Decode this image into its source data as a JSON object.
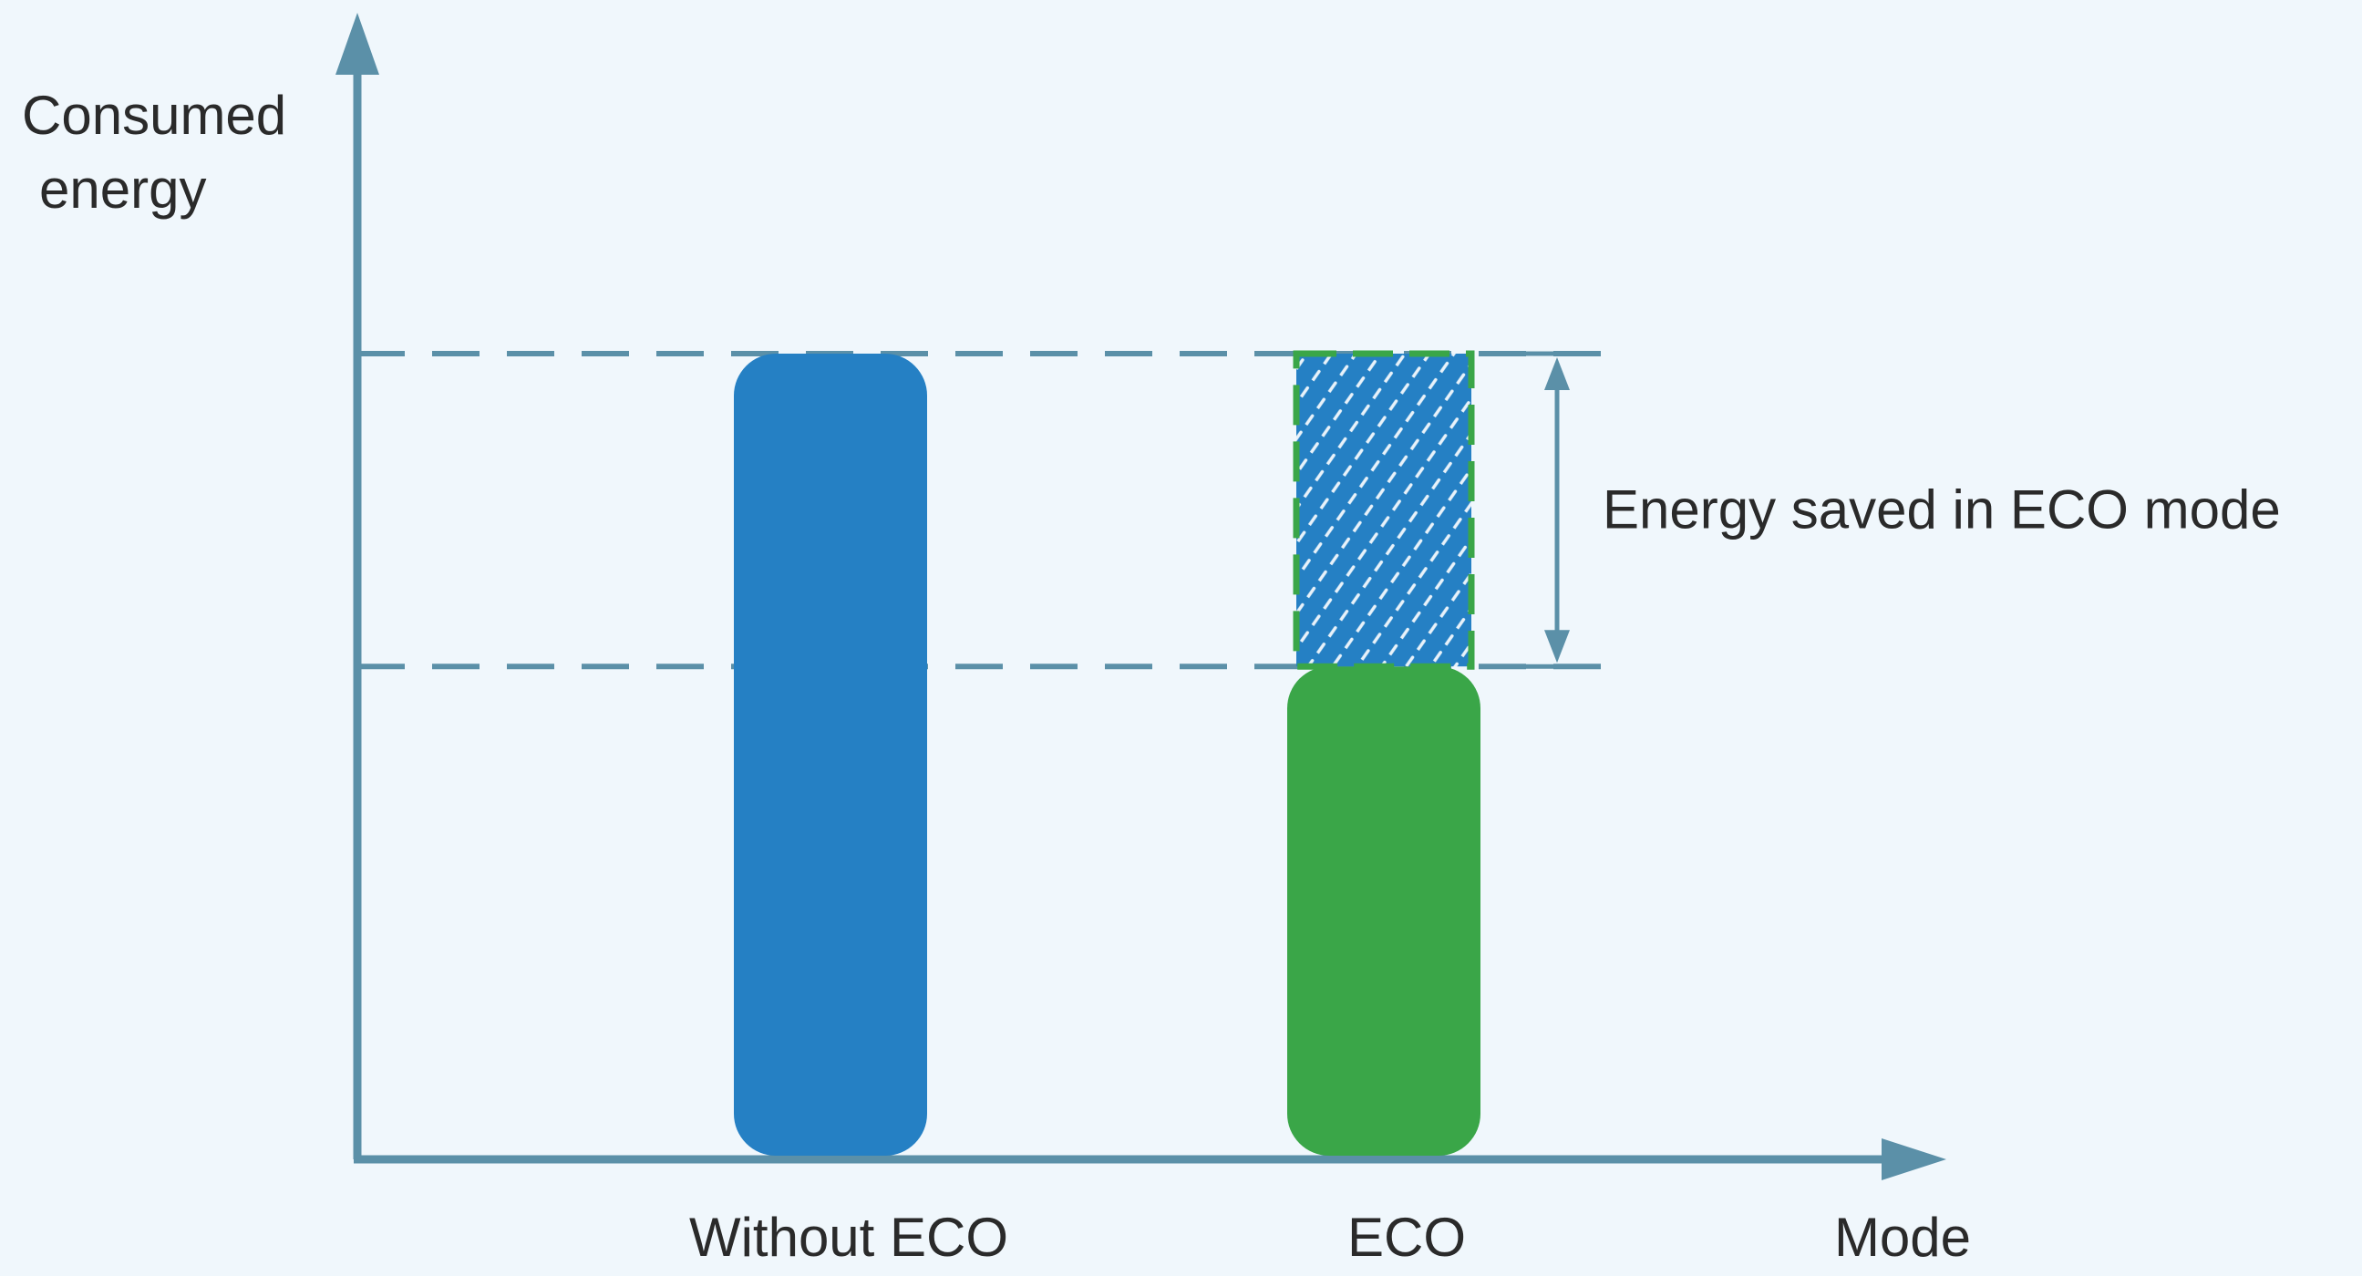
{
  "chart_data": {
    "type": "bar",
    "title": "",
    "ylabel_lines": [
      "Consumed",
      "energy"
    ],
    "xlabel": "Mode",
    "categories": [
      "Without ECO",
      "ECO"
    ],
    "series": [
      {
        "values": [
          1.0,
          0.61
        ]
      }
    ],
    "saved": {
      "category": "ECO",
      "value": 0.39,
      "label": "Energy saved in ECO mode"
    },
    "ylim": [
      0,
      1.1
    ],
    "grid": false,
    "legend": "none",
    "colors": {
      "background": "#f0f7fc",
      "axis": "#5b90a8",
      "dashed_line": "#5b90a8",
      "without_eco_bar": "#2580c4",
      "eco_bar": "#3aa648",
      "saved_fill": "#2580c4",
      "saved_border": "#3aa648",
      "hatch": "#e8f2fa",
      "text": "#2a2a2a"
    }
  }
}
